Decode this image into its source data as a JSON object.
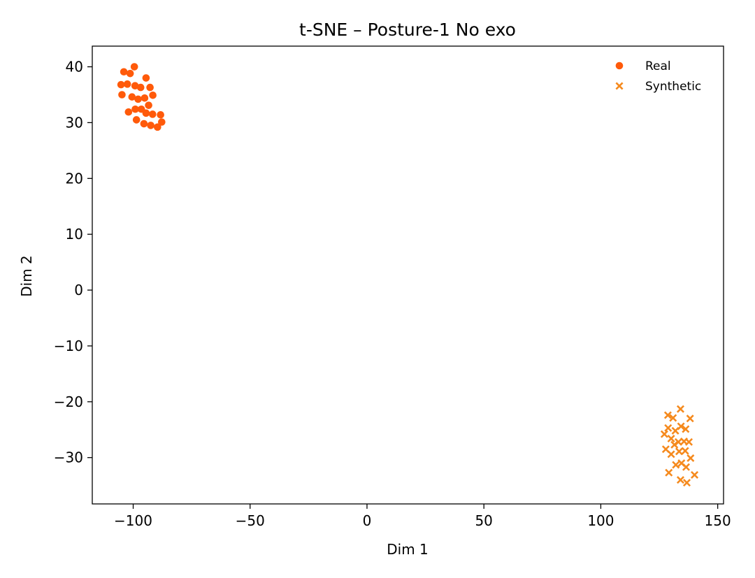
{
  "chart_data": {
    "type": "scatter",
    "title": "t-SNE – Posture-1 No exo",
    "xlabel": "Dim 1",
    "ylabel": "Dim 2",
    "xlim": [
      -117.5,
      152.5
    ],
    "ylim": [
      -38.3,
      43.7
    ],
    "xticks": [
      -100,
      -50,
      0,
      50,
      100,
      150
    ],
    "xtick_labels": [
      "−100",
      "−50",
      "0",
      "50",
      "100",
      "150"
    ],
    "yticks": [
      -30,
      -20,
      -10,
      0,
      10,
      20,
      30,
      40
    ],
    "ytick_labels": [
      "−30",
      "−20",
      "−10",
      "0",
      "10",
      "20",
      "30",
      "40"
    ],
    "grid": false,
    "legend_position": "top-right",
    "series": [
      {
        "name": "Real",
        "marker": "circle",
        "color": "#ff5a0a",
        "points": [
          [
            -104,
            39.1
          ],
          [
            -99.5,
            40.0
          ],
          [
            -101.3,
            38.8
          ],
          [
            -94.5,
            38.0
          ],
          [
            -105.2,
            36.8
          ],
          [
            -102.5,
            36.9
          ],
          [
            -99.2,
            36.6
          ],
          [
            -96.8,
            36.3
          ],
          [
            -92.8,
            36.3
          ],
          [
            -104.8,
            35.0
          ],
          [
            -100.5,
            34.6
          ],
          [
            -97.9,
            34.2
          ],
          [
            -95.1,
            34.4
          ],
          [
            -91.6,
            34.9
          ],
          [
            -93.4,
            33.1
          ],
          [
            -99.1,
            32.4
          ],
          [
            -96.5,
            32.4
          ],
          [
            -94.5,
            31.7
          ],
          [
            -91.7,
            31.5
          ],
          [
            -88.3,
            31.4
          ],
          [
            -102,
            31.9
          ],
          [
            -98.6,
            30.5
          ],
          [
            -95.4,
            29.8
          ],
          [
            -92.5,
            29.5
          ],
          [
            -89.6,
            29.2
          ],
          [
            -87.8,
            30.1
          ]
        ]
      },
      {
        "name": "Synthetic",
        "marker": "x",
        "color": "#f58a1e",
        "points": [
          [
            134.1,
            -21.3
          ],
          [
            128.7,
            -22.4
          ],
          [
            130.9,
            -22.9
          ],
          [
            138.2,
            -23.0
          ],
          [
            134.3,
            -24.4
          ],
          [
            128.8,
            -24.7
          ],
          [
            136.3,
            -24.9
          ],
          [
            131.9,
            -25.2
          ],
          [
            127.2,
            -25.8
          ],
          [
            130.1,
            -26.6
          ],
          [
            133.2,
            -27.2
          ],
          [
            135.6,
            -27.1
          ],
          [
            137.7,
            -27.2
          ],
          [
            131.5,
            -27.7
          ],
          [
            127.8,
            -28.5
          ],
          [
            133.5,
            -28.9
          ],
          [
            136.1,
            -28.8
          ],
          [
            130.1,
            -29.4
          ],
          [
            138.4,
            -30.1
          ],
          [
            132.1,
            -31.3
          ],
          [
            134.5,
            -31.0
          ],
          [
            136.5,
            -31.7
          ],
          [
            129.1,
            -32.7
          ],
          [
            140.1,
            -33.1
          ],
          [
            134.1,
            -34.0
          ],
          [
            136.8,
            -34.5
          ]
        ]
      }
    ]
  }
}
